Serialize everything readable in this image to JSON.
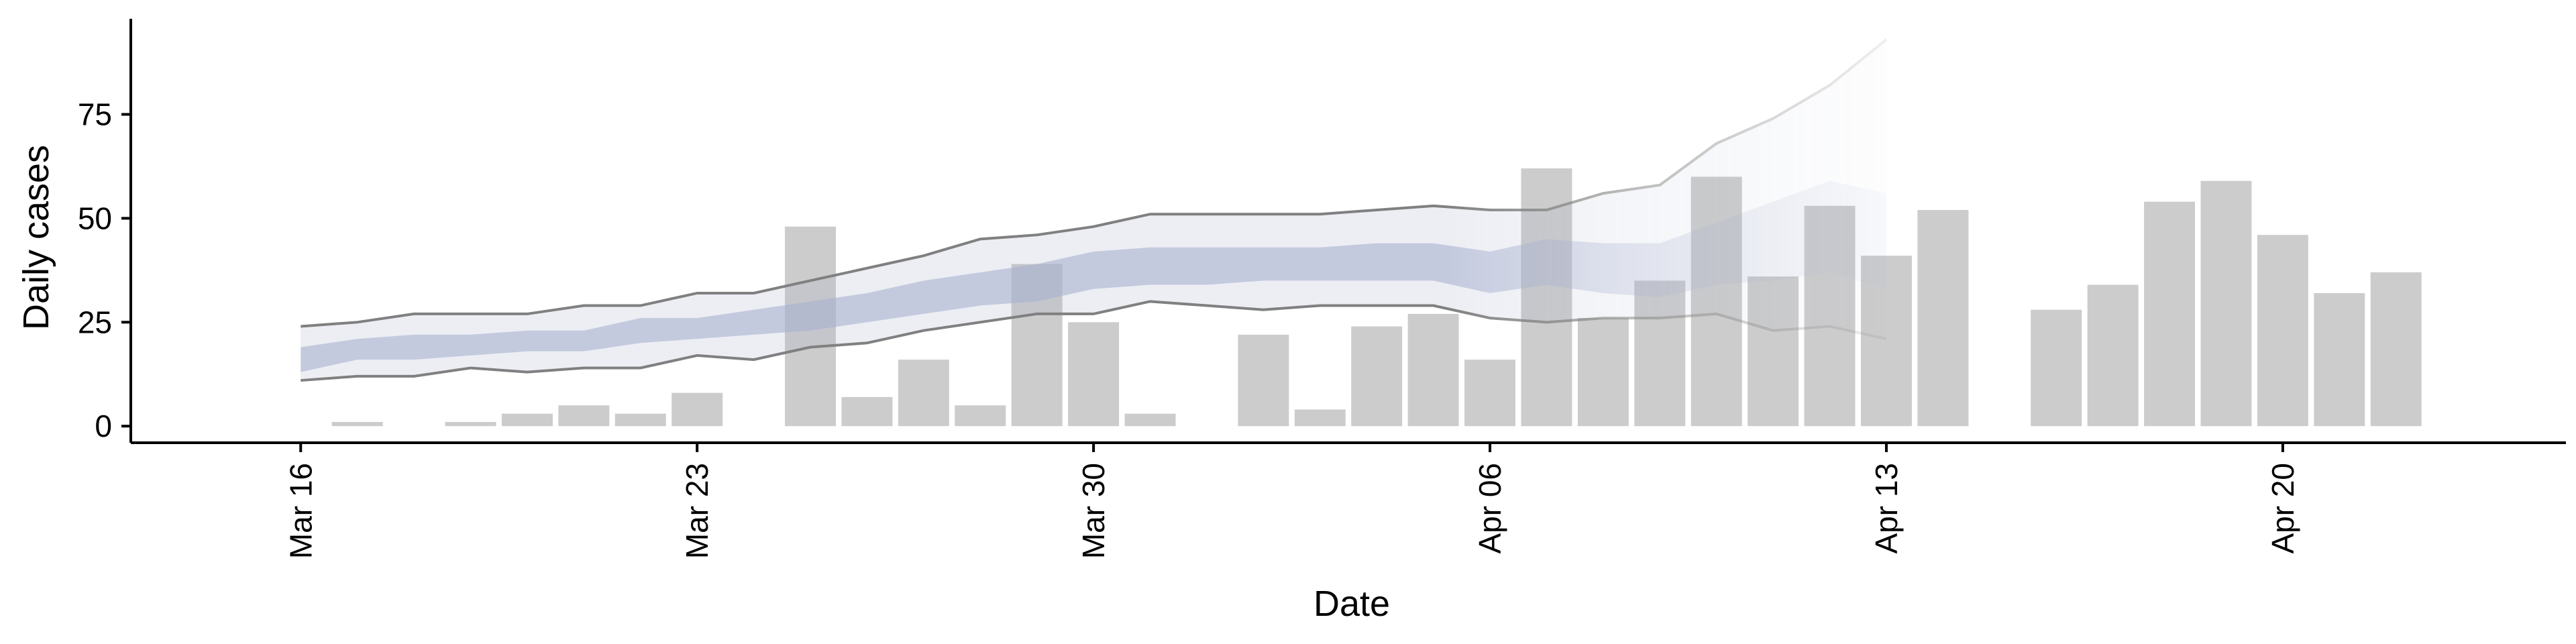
{
  "chart_data": {
    "type": "bar",
    "xlabel": "Date",
    "ylabel": "Daily cases",
    "xlim": [
      "2020-03-13",
      "2020-04-25"
    ],
    "ylim": [
      -4,
      98
    ],
    "x_ticks": [
      {
        "date": "2020-03-16",
        "label": "Mar 16"
      },
      {
        "date": "2020-03-23",
        "label": "Mar 23"
      },
      {
        "date": "2020-03-30",
        "label": "Mar 30"
      },
      {
        "date": "2020-04-06",
        "label": "Apr 06"
      },
      {
        "date": "2020-04-13",
        "label": "Apr 13"
      },
      {
        "date": "2020-04-20",
        "label": "Apr 20"
      }
    ],
    "y_ticks": [
      0,
      25,
      50,
      75
    ],
    "grid": false,
    "legend": "none",
    "colors": {
      "bars": "#cccccc",
      "band": "#aab3cf",
      "interval_lines": "#808080"
    },
    "series": [
      {
        "type": "bar",
        "points": [
          {
            "date": "2020-03-17",
            "value": 1
          },
          {
            "date": "2020-03-19",
            "value": 1
          },
          {
            "date": "2020-03-20",
            "value": 3
          },
          {
            "date": "2020-03-21",
            "value": 5
          },
          {
            "date": "2020-03-22",
            "value": 3
          },
          {
            "date": "2020-03-23",
            "value": 8
          },
          {
            "date": "2020-03-25",
            "value": 48
          },
          {
            "date": "2020-03-26",
            "value": 7
          },
          {
            "date": "2020-03-27",
            "value": 16
          },
          {
            "date": "2020-03-28",
            "value": 5
          },
          {
            "date": "2020-03-29",
            "value": 39
          },
          {
            "date": "2020-03-30",
            "value": 25
          },
          {
            "date": "2020-03-31",
            "value": 3
          },
          {
            "date": "2020-04-02",
            "value": 22
          },
          {
            "date": "2020-04-03",
            "value": 4
          },
          {
            "date": "2020-04-04",
            "value": 24
          },
          {
            "date": "2020-04-05",
            "value": 27
          },
          {
            "date": "2020-04-06",
            "value": 16
          },
          {
            "date": "2020-04-07",
            "value": 62
          },
          {
            "date": "2020-04-08",
            "value": 26
          },
          {
            "date": "2020-04-09",
            "value": 35
          },
          {
            "date": "2020-04-10",
            "value": 60
          },
          {
            "date": "2020-04-11",
            "value": 36
          },
          {
            "date": "2020-04-12",
            "value": 53
          },
          {
            "date": "2020-04-13",
            "value": 41
          },
          {
            "date": "2020-04-14",
            "value": 52
          },
          {
            "date": "2020-04-16",
            "value": 28
          },
          {
            "date": "2020-04-17",
            "value": 34
          },
          {
            "date": "2020-04-18",
            "value": 54
          },
          {
            "date": "2020-04-19",
            "value": 59
          },
          {
            "date": "2020-04-20",
            "value": 46
          },
          {
            "date": "2020-04-21",
            "value": 32
          },
          {
            "date": "2020-04-22",
            "value": 37
          }
        ]
      },
      {
        "type": "ribbon",
        "x": [
          "2020-03-16",
          "2020-03-17",
          "2020-03-18",
          "2020-03-19",
          "2020-03-20",
          "2020-03-21",
          "2020-03-22",
          "2020-03-23",
          "2020-03-24",
          "2020-03-25",
          "2020-03-26",
          "2020-03-27",
          "2020-03-28",
          "2020-03-29",
          "2020-03-30",
          "2020-03-31",
          "2020-04-01",
          "2020-04-02",
          "2020-04-03",
          "2020-04-04",
          "2020-04-05",
          "2020-04-06",
          "2020-04-07",
          "2020-04-08",
          "2020-04-09",
          "2020-04-10",
          "2020-04-11",
          "2020-04-12",
          "2020-04-13"
        ],
        "outer_lower": [
          11,
          12,
          12,
          14,
          13,
          14,
          14,
          17,
          16,
          19,
          20,
          23,
          25,
          27,
          27,
          30,
          29,
          28,
          29,
          29,
          29,
          26,
          25,
          26,
          26,
          27,
          23,
          24,
          21
        ],
        "outer_upper": [
          24,
          25,
          27,
          27,
          27,
          29,
          29,
          32,
          32,
          35,
          38,
          41,
          45,
          46,
          48,
          51,
          51,
          51,
          51,
          52,
          53,
          52,
          52,
          56,
          58,
          68,
          74,
          82,
          93
        ],
        "inner_lower": [
          13,
          16,
          16,
          17,
          18,
          18,
          20,
          21,
          22,
          23,
          25,
          27,
          29,
          30,
          33,
          34,
          34,
          35,
          35,
          35,
          35,
          32,
          34,
          32,
          31,
          34,
          35,
          37,
          33
        ],
        "inner_upper": [
          19,
          21,
          22,
          22,
          23,
          23,
          26,
          26,
          28,
          30,
          32,
          35,
          37,
          39,
          42,
          43,
          43,
          43,
          43,
          44,
          44,
          42,
          45,
          44,
          44,
          49,
          54,
          59,
          56
        ]
      }
    ]
  }
}
